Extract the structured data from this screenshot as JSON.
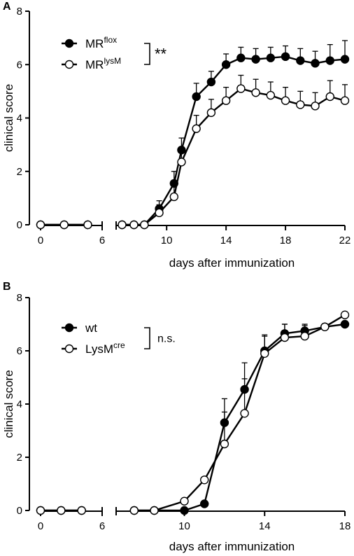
{
  "chart_data": [
    {
      "type": "line",
      "panel": "A",
      "xlabel": "days after immunization",
      "ylabel": "clinical score",
      "xlim": [
        0,
        22
      ],
      "ylim": [
        0,
        8
      ],
      "x_break": [
        6,
        7
      ],
      "x_ticks": [
        0,
        6,
        10,
        14,
        18,
        22
      ],
      "y_ticks": [
        0,
        2,
        4,
        6,
        8
      ],
      "grid": false,
      "legend_position": "top-left",
      "significance": "**",
      "series": [
        {
          "name": "MR",
          "name_sup": "flox",
          "marker": "filled",
          "x": [
            0,
            2.3,
            4.6,
            7,
            7.8,
            8.5,
            9.5,
            10.5,
            11,
            12,
            13,
            14,
            15,
            16,
            17,
            18,
            19,
            20,
            21,
            22
          ],
          "values": [
            0,
            0,
            0,
            0,
            0,
            0,
            0.6,
            1.55,
            2.8,
            4.8,
            5.35,
            6.0,
            6.25,
            6.2,
            6.25,
            6.3,
            6.15,
            6.05,
            6.15,
            6.2
          ],
          "errors": [
            0,
            0,
            0,
            0,
            0,
            0,
            0.3,
            0.45,
            0.45,
            0.5,
            0.4,
            0.4,
            0.4,
            0.4,
            0.4,
            0.4,
            0.45,
            0.45,
            0.6,
            0.7
          ]
        },
        {
          "name": "MR",
          "name_sup": "lysM",
          "marker": "open",
          "x": [
            0,
            2.3,
            4.6,
            7,
            7.8,
            8.5,
            9.5,
            10.5,
            11,
            12,
            13,
            14,
            15,
            16,
            17,
            18,
            19,
            20,
            21,
            22
          ],
          "values": [
            0,
            0,
            0,
            0,
            0,
            0,
            0.45,
            1.05,
            2.35,
            3.6,
            4.2,
            4.65,
            5.1,
            4.95,
            4.85,
            4.65,
            4.5,
            4.45,
            4.8,
            4.65
          ],
          "errors": [
            0,
            0,
            0,
            0,
            0,
            0,
            0.3,
            0.4,
            0.45,
            0.5,
            0.5,
            0.5,
            0.5,
            0.5,
            0.5,
            0.5,
            0.5,
            0.5,
            0.6,
            0.6
          ]
        }
      ]
    },
    {
      "type": "line",
      "panel": "B",
      "xlabel": "days after immunization",
      "ylabel": "clinical score",
      "xlim": [
        0,
        18
      ],
      "ylim": [
        0,
        8
      ],
      "x_break": [
        6,
        7
      ],
      "x_ticks": [
        0,
        6,
        10,
        14,
        18
      ],
      "y_ticks": [
        0,
        2,
        4,
        6,
        8
      ],
      "grid": false,
      "legend_position": "top-left",
      "significance": "n.s.",
      "series": [
        {
          "name": "wt",
          "name_sup": "",
          "marker": "filled",
          "x": [
            0,
            2,
            4,
            7.5,
            8.5,
            10,
            11,
            12,
            13,
            14,
            15,
            16,
            17,
            18
          ],
          "values": [
            0,
            0,
            0,
            0,
            0,
            0,
            0.25,
            3.3,
            4.55,
            6.0,
            6.65,
            6.75,
            6.9,
            7.0
          ],
          "errors": [
            0,
            0,
            0,
            0,
            0,
            0,
            0,
            0.9,
            1.0,
            0.6,
            0.35,
            0.25,
            0,
            0
          ]
        },
        {
          "name": "LysM",
          "name_sup": "cre",
          "marker": "open",
          "x": [
            0,
            2,
            4,
            7.5,
            8.5,
            10,
            11,
            12,
            13,
            14,
            15,
            16,
            17,
            18
          ],
          "values": [
            0,
            0,
            0,
            0,
            0,
            0.35,
            1.15,
            2.5,
            3.65,
            5.9,
            6.5,
            6.55,
            6.9,
            7.35
          ],
          "errors": [
            0,
            0,
            0,
            0,
            0,
            0,
            0,
            1.2,
            1.3,
            0.65,
            0.5,
            0.4,
            0,
            0
          ]
        }
      ]
    }
  ]
}
